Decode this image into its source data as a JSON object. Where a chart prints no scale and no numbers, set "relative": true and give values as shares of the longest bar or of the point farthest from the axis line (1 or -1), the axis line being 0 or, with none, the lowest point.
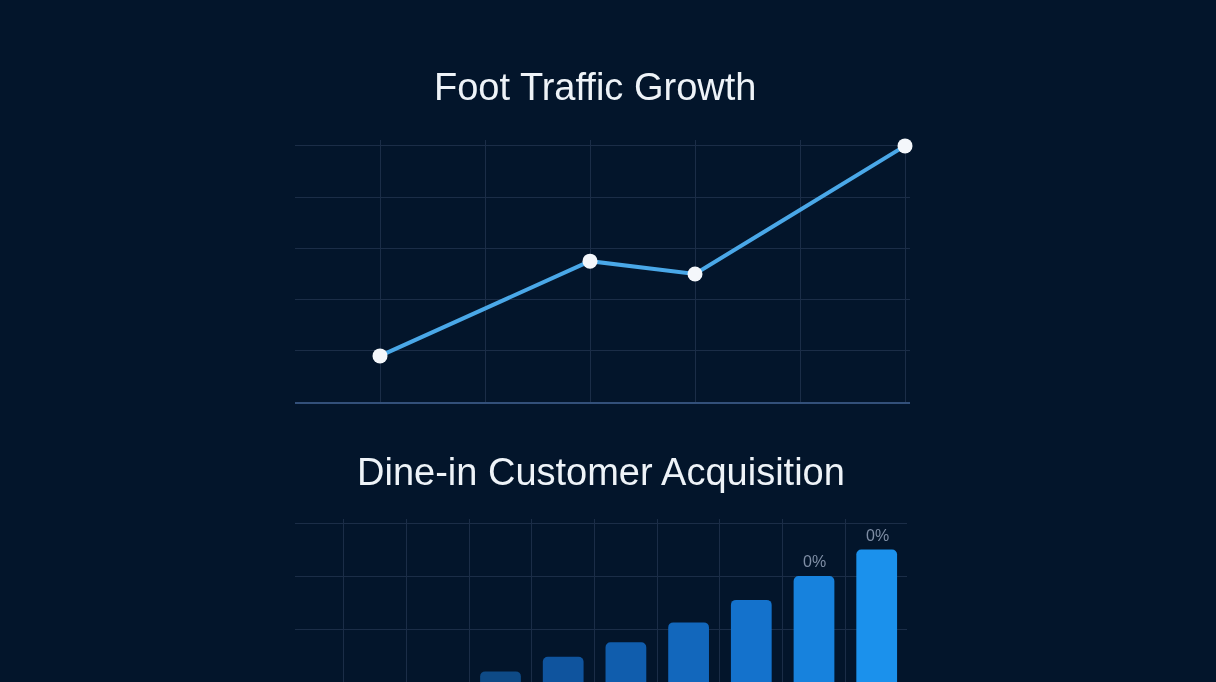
{
  "chart_data": [
    {
      "type": "line",
      "title": "Foot Traffic Growth",
      "categories": [
        null,
        null,
        null,
        null,
        null,
        null
      ],
      "relative": true,
      "grid": true,
      "marker": "circle",
      "line_style": "solid",
      "series": [
        {
          "color": "#4aa8e8",
          "values": [
            0.18,
            null,
            0.55,
            0.5,
            null,
            1
          ]
        }
      ]
    },
    {
      "type": "bar",
      "title": "Dine-in Customer Acquisition",
      "categories": [
        null,
        null,
        null,
        null,
        null,
        null,
        null
      ],
      "relative": true,
      "grid": true,
      "values": [
        0.08,
        0.19,
        0.3,
        0.45,
        0.62,
        0.8,
        1
      ],
      "colors": [
        "#0e4a86",
        "#0f549e",
        "#105dad",
        "#1267bc",
        "#1472cc",
        "#1782dd",
        "#1b91ec"
      ],
      "annotations": [
        "0%",
        "0%"
      ]
    }
  ]
}
